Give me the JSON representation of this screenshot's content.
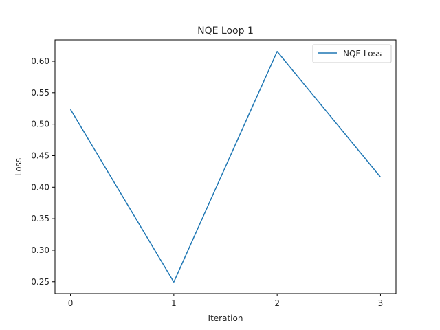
{
  "chart_data": {
    "type": "line",
    "title": "NQE Loop 1",
    "xlabel": "Iteration",
    "ylabel": "Loss",
    "x": [
      0,
      1,
      2,
      3
    ],
    "series": [
      {
        "name": "NQE Loss",
        "values": [
          0.5235,
          0.2495,
          0.6155,
          0.416
        ],
        "color": "#1f77b4"
      }
    ],
    "xticks": [
      0,
      1,
      2,
      3
    ],
    "yticks": [
      0.25,
      0.3,
      0.35,
      0.4,
      0.45,
      0.5,
      0.55,
      0.6
    ],
    "xlim": [
      -0.15,
      3.15
    ],
    "ylim": [
      0.2312,
      0.6338
    ],
    "grid": false,
    "legend": "upper right"
  }
}
